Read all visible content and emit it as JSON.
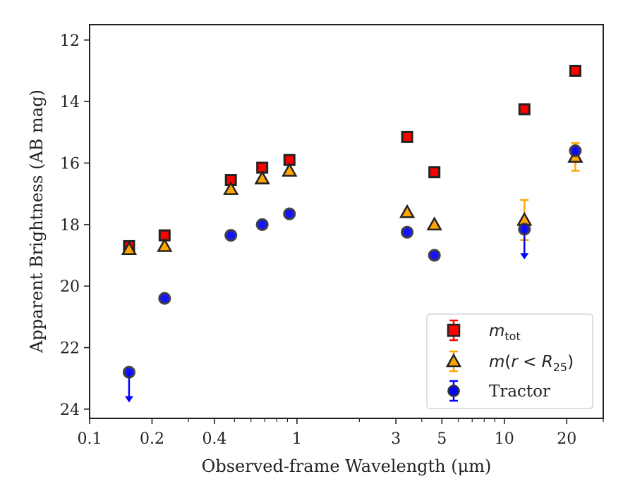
{
  "chart_data": {
    "type": "scatter",
    "xlabel": "Observed-frame Wavelength (μm)",
    "ylabel": "Apparent Brightness (AB mag)",
    "xscale": "log",
    "xlim": [
      0.1,
      30
    ],
    "ylim": [
      24.3,
      11.5
    ],
    "y_inverted": true,
    "x_ticks": [
      {
        "value": 0.1,
        "label": "0.1"
      },
      {
        "value": 0.2,
        "label": "0.2"
      },
      {
        "value": 0.4,
        "label": "0.4"
      },
      {
        "value": 1,
        "label": "1"
      },
      {
        "value": 3,
        "label": "3"
      },
      {
        "value": 5,
        "label": "5"
      },
      {
        "value": 10,
        "label": "10"
      },
      {
        "value": 20,
        "label": "20"
      }
    ],
    "y_ticks": [
      {
        "value": 12,
        "label": "12"
      },
      {
        "value": 14,
        "label": "14"
      },
      {
        "value": 16,
        "label": "16"
      },
      {
        "value": 18,
        "label": "18"
      },
      {
        "value": 20,
        "label": "20"
      },
      {
        "value": 22,
        "label": "22"
      },
      {
        "value": 24,
        "label": "24"
      }
    ],
    "grid": false,
    "legend_position": "lower-right",
    "series": [
      {
        "name": "m_tot",
        "legend_label": "mtot",
        "marker": "square",
        "color": "#ff0000",
        "errcolor": "#ff0000",
        "points": [
          {
            "x": 0.155,
            "y": 18.7
          },
          {
            "x": 0.23,
            "y": 18.35
          },
          {
            "x": 0.48,
            "y": 16.55
          },
          {
            "x": 0.68,
            "y": 16.15
          },
          {
            "x": 0.92,
            "y": 15.9
          },
          {
            "x": 3.4,
            "y": 15.15
          },
          {
            "x": 4.6,
            "y": 16.3
          },
          {
            "x": 12.5,
            "y": 14.25
          },
          {
            "x": 22.0,
            "y": 13.0
          }
        ]
      },
      {
        "name": "m(r<R25)",
        "legend_label": "m(r < R25)",
        "marker": "triangle",
        "color": "#ffa500",
        "errcolor": "#ffa500",
        "points": [
          {
            "x": 0.155,
            "y": 18.8
          },
          {
            "x": 0.23,
            "y": 18.7
          },
          {
            "x": 0.48,
            "y": 16.85
          },
          {
            "x": 0.68,
            "y": 16.5
          },
          {
            "x": 0.92,
            "y": 16.25
          },
          {
            "x": 3.4,
            "y": 17.6
          },
          {
            "x": 4.6,
            "y": 18.0
          },
          {
            "x": 12.5,
            "y": 17.85,
            "err": 0.65
          },
          {
            "x": 22.0,
            "y": 15.8,
            "err": 0.45
          }
        ]
      },
      {
        "name": "Tractor",
        "legend_label": "Tractor",
        "marker": "circle",
        "color": "#0000ff",
        "errcolor": "#0000ff",
        "points": [
          {
            "x": 0.155,
            "y": 22.8,
            "upper_limit": true
          },
          {
            "x": 0.23,
            "y": 20.4
          },
          {
            "x": 0.48,
            "y": 18.35
          },
          {
            "x": 0.68,
            "y": 18.0
          },
          {
            "x": 0.92,
            "y": 17.65
          },
          {
            "x": 3.4,
            "y": 18.25
          },
          {
            "x": 4.6,
            "y": 19.0
          },
          {
            "x": 12.5,
            "y": 18.15,
            "upper_limit": true
          },
          {
            "x": 22.0,
            "y": 15.6
          }
        ]
      }
    ]
  }
}
